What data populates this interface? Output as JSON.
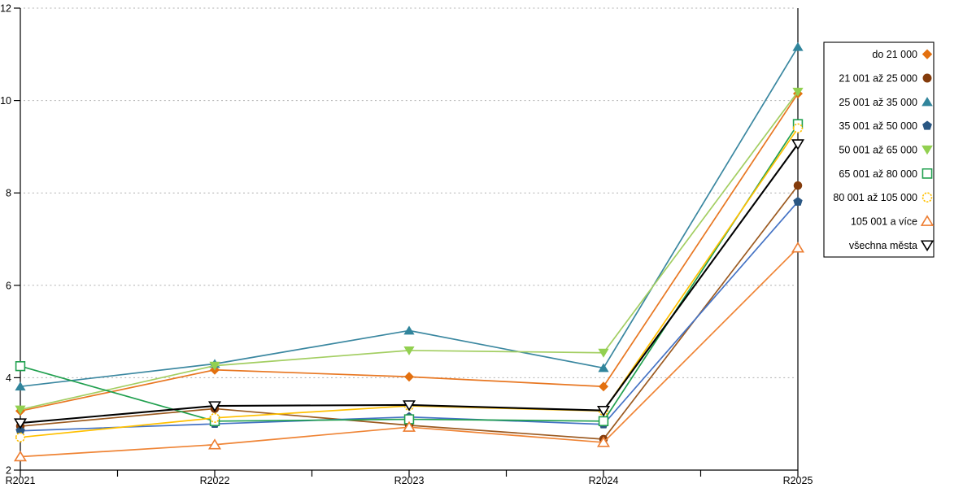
{
  "chart_data": {
    "type": "line",
    "title": "",
    "xlabel": "",
    "ylabel": "",
    "x_categories": [
      "R2021",
      "R2022",
      "R2023",
      "R2024",
      "R2025"
    ],
    "ylim": [
      2,
      12
    ],
    "yticks": [
      2,
      4,
      6,
      8,
      10,
      12
    ],
    "grid": "horizontal-dotted",
    "grid_color": "#b0b0b0",
    "axis_color": "#000000",
    "legend_position": "right",
    "legend_border_color": "#000000",
    "series": [
      {
        "name": "do 21 000",
        "marker": "diamond",
        "fill": "filled",
        "color": "#E3700F",
        "line_color": "#E87722",
        "values": [
          3.28,
          4.17,
          4.02,
          3.81,
          10.15
        ]
      },
      {
        "name": "21 001 až 25 000",
        "marker": "circle",
        "fill": "filled",
        "color": "#843C0C",
        "line_color": "#9C5A20",
        "values": [
          2.95,
          3.33,
          2.97,
          2.67,
          8.16
        ]
      },
      {
        "name": "25 001 až 35 000",
        "marker": "triangle-up",
        "fill": "filled",
        "color": "#31859C",
        "line_color": "#3A87A0",
        "values": [
          3.81,
          4.3,
          5.02,
          4.21,
          11.16
        ]
      },
      {
        "name": "35 001 až 50 000",
        "marker": "pentagon",
        "fill": "filled",
        "color": "#2A5783",
        "line_color": "#4472C4",
        "values": [
          2.85,
          3.0,
          3.15,
          2.99,
          7.81
        ]
      },
      {
        "name": "50 001 až 65 000",
        "marker": "triangle-down",
        "fill": "filled",
        "color": "#92D050",
        "line_color": "#A3CE62",
        "values": [
          3.31,
          4.26,
          4.59,
          4.54,
          10.19
        ]
      },
      {
        "name": "65 001 až 80 000",
        "marker": "square",
        "fill": "open",
        "color": "#21A04F",
        "line_color": "#21A04F",
        "values": [
          4.25,
          3.06,
          3.1,
          3.06,
          9.49
        ]
      },
      {
        "name": "80 001 až 105 000",
        "marker": "circle",
        "fill": "open",
        "color": "#FFC000",
        "line_color": "#FFC000",
        "values": [
          2.71,
          3.13,
          3.39,
          3.28,
          9.4
        ]
      },
      {
        "name": "105 001 a více",
        "marker": "triangle-up",
        "fill": "open",
        "color": "#ED7D31",
        "line_color": "#EF8435",
        "values": [
          2.29,
          2.55,
          2.93,
          2.6,
          6.81
        ]
      },
      {
        "name": "všechna města",
        "marker": "triangle-down",
        "fill": "open",
        "color": "#000000",
        "line_color": "#000000",
        "values": [
          3.02,
          3.39,
          3.41,
          3.29,
          9.06
        ]
      }
    ]
  }
}
